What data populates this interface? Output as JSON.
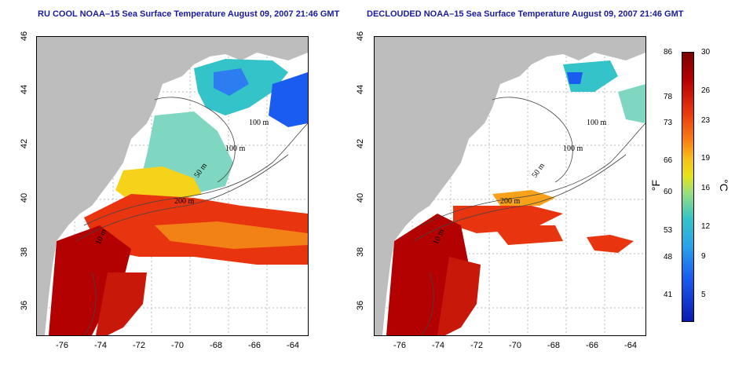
{
  "left_panel": {
    "title": "RU COOL NOAA–15 Sea Surface Temperature August 09, 2007 21:46 GMT"
  },
  "right_panel": {
    "title": "DECLOUDED NOAA–15 Sea Surface Temperature August 09, 2007 21:46 GMT"
  },
  "axes": {
    "lat_ticks": [
      "46",
      "44",
      "42",
      "40",
      "38",
      "36"
    ],
    "lon_ticks": [
      "-76",
      "-74",
      "-72",
      "-70",
      "-68",
      "-66",
      "-64"
    ]
  },
  "contour_labels": {
    "m100a": "100 m",
    "m100b": "100 m",
    "m50": "50 m",
    "m200": "200 m",
    "m10": "10 m"
  },
  "colorbar": {
    "f_ticks": [
      "86",
      "78",
      "73",
      "66",
      "60",
      "53",
      "48",
      "41"
    ],
    "c_ticks": [
      "30",
      "26",
      "23",
      "19",
      "16",
      "12",
      "9",
      "5"
    ],
    "unit_f": "°F",
    "unit_c": "°C"
  },
  "colors": {
    "land": "#bdbdbd",
    "title": "#1a1aa0",
    "hot": "#b30000",
    "warm": "#e8350f",
    "mild": "#f7a21a",
    "cool": "#33c3c9",
    "cold": "#1a5cf0"
  }
}
